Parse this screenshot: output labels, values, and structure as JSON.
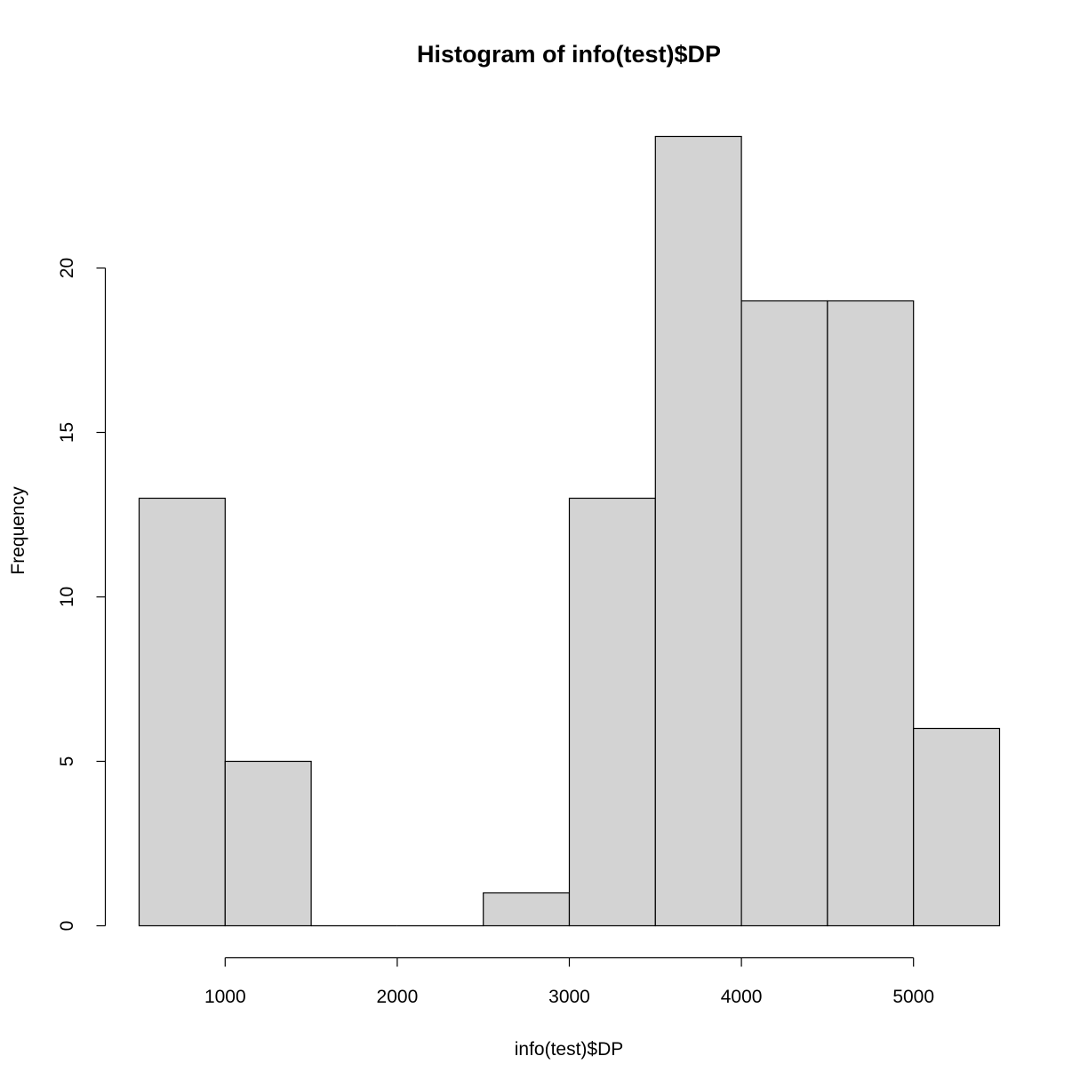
{
  "chart_data": {
    "type": "bar",
    "title": "Histogram of info(test)$DP",
    "xlabel": "info(test)$DP",
    "ylabel": "Frequency",
    "bins": [
      {
        "start": 500,
        "end": 1000,
        "count": 13
      },
      {
        "start": 1000,
        "end": 1500,
        "count": 5
      },
      {
        "start": 1500,
        "end": 2000,
        "count": 0
      },
      {
        "start": 2000,
        "end": 2500,
        "count": 0
      },
      {
        "start": 2500,
        "end": 3000,
        "count": 1
      },
      {
        "start": 3000,
        "end": 3500,
        "count": 13
      },
      {
        "start": 3500,
        "end": 4000,
        "count": 24
      },
      {
        "start": 4000,
        "end": 4500,
        "count": 19
      },
      {
        "start": 4500,
        "end": 5000,
        "count": 19
      },
      {
        "start": 5000,
        "end": 5500,
        "count": 6
      }
    ],
    "xticks": [
      1000,
      2000,
      3000,
      4000,
      5000
    ],
    "yticks": [
      0,
      5,
      10,
      15,
      20
    ],
    "xlim": [
      500,
      5500
    ],
    "ylim": [
      0,
      24
    ],
    "grid": false,
    "colors": {
      "bar_fill": "#d3d3d3",
      "bar_stroke": "#000000"
    }
  }
}
